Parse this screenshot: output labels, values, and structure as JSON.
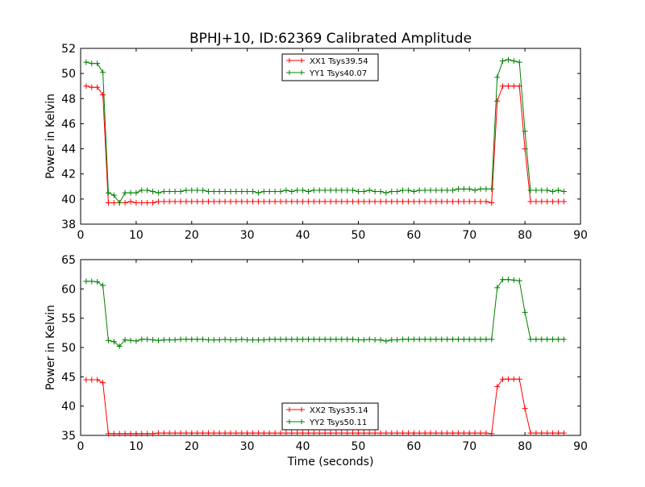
{
  "title": "BPHJ+10, ID:62369 Calibrated Amplitude",
  "colors": {
    "xx": "#ff0000",
    "yy": "#008000"
  },
  "chart_data": [
    {
      "type": "line",
      "title": "BPHJ+10, ID:62369 Calibrated Amplitude",
      "xlabel": "",
      "ylabel": "Power in Kelvin",
      "xlim": [
        0,
        90
      ],
      "ylim": [
        38,
        52
      ],
      "xticks": [
        0,
        10,
        20,
        30,
        40,
        50,
        60,
        70,
        80,
        90
      ],
      "yticks": [
        38,
        40,
        42,
        44,
        46,
        48,
        50,
        52
      ],
      "grid": false,
      "legend": "top-center",
      "x": [
        1,
        2,
        3,
        4,
        5,
        6,
        7,
        8,
        9,
        10,
        11,
        12,
        13,
        14,
        15,
        16,
        17,
        18,
        19,
        20,
        21,
        22,
        23,
        24,
        25,
        26,
        27,
        28,
        29,
        30,
        31,
        32,
        33,
        34,
        35,
        36,
        37,
        38,
        39,
        40,
        41,
        42,
        43,
        44,
        45,
        46,
        47,
        48,
        49,
        50,
        51,
        52,
        53,
        54,
        55,
        56,
        57,
        58,
        59,
        60,
        61,
        62,
        63,
        64,
        65,
        66,
        67,
        68,
        69,
        70,
        71,
        72,
        73,
        74,
        75,
        76,
        77,
        78,
        79,
        80,
        81,
        82,
        83,
        84,
        85,
        86,
        87
      ],
      "series": [
        {
          "name": "XX1 Tsys39.54",
          "color": "#ff0000",
          "values": [
            49.0,
            48.9,
            48.9,
            48.3,
            39.7,
            39.7,
            39.7,
            39.7,
            39.8,
            39.7,
            39.7,
            39.7,
            39.7,
            39.8,
            39.8,
            39.8,
            39.8,
            39.8,
            39.8,
            39.8,
            39.8,
            39.8,
            39.8,
            39.8,
            39.8,
            39.8,
            39.8,
            39.8,
            39.8,
            39.8,
            39.8,
            39.8,
            39.8,
            39.8,
            39.8,
            39.8,
            39.8,
            39.8,
            39.8,
            39.8,
            39.8,
            39.8,
            39.8,
            39.8,
            39.8,
            39.8,
            39.8,
            39.8,
            39.8,
            39.8,
            39.8,
            39.8,
            39.8,
            39.8,
            39.8,
            39.8,
            39.8,
            39.8,
            39.8,
            39.8,
            39.8,
            39.8,
            39.8,
            39.8,
            39.8,
            39.8,
            39.8,
            39.8,
            39.8,
            39.8,
            39.8,
            39.8,
            39.8,
            39.7,
            47.8,
            49.0,
            49.0,
            49.0,
            49.0,
            44.0,
            39.8,
            39.8,
            39.8,
            39.8,
            39.8,
            39.8,
            39.8
          ]
        },
        {
          "name": "YY1 Tsys40.07",
          "color": "#008000",
          "values": [
            50.9,
            50.8,
            50.8,
            50.1,
            40.5,
            40.3,
            39.7,
            40.5,
            40.5,
            40.5,
            40.7,
            40.7,
            40.6,
            40.5,
            40.6,
            40.6,
            40.6,
            40.6,
            40.7,
            40.7,
            40.7,
            40.7,
            40.6,
            40.6,
            40.6,
            40.6,
            40.6,
            40.6,
            40.6,
            40.6,
            40.6,
            40.5,
            40.6,
            40.6,
            40.6,
            40.6,
            40.7,
            40.6,
            40.7,
            40.7,
            40.6,
            40.7,
            40.7,
            40.7,
            40.7,
            40.7,
            40.7,
            40.7,
            40.7,
            40.6,
            40.6,
            40.7,
            40.6,
            40.6,
            40.5,
            40.6,
            40.6,
            40.7,
            40.7,
            40.6,
            40.7,
            40.7,
            40.7,
            40.7,
            40.7,
            40.7,
            40.7,
            40.8,
            40.8,
            40.8,
            40.7,
            40.8,
            40.8,
            40.8,
            49.7,
            51.0,
            51.1,
            51.0,
            50.9,
            45.4,
            40.7,
            40.7,
            40.7,
            40.7,
            40.6,
            40.7,
            40.6
          ]
        }
      ]
    },
    {
      "type": "line",
      "title": "",
      "xlabel": "Time (seconds)",
      "ylabel": "Power in Kelvin",
      "xlim": [
        0,
        90
      ],
      "ylim": [
        35,
        65
      ],
      "xticks": [
        0,
        10,
        20,
        30,
        40,
        50,
        60,
        70,
        80,
        90
      ],
      "yticks": [
        35,
        40,
        45,
        50,
        55,
        60,
        65
      ],
      "grid": false,
      "legend": "bottom-center",
      "x": [
        1,
        2,
        3,
        4,
        5,
        6,
        7,
        8,
        9,
        10,
        11,
        12,
        13,
        14,
        15,
        16,
        17,
        18,
        19,
        20,
        21,
        22,
        23,
        24,
        25,
        26,
        27,
        28,
        29,
        30,
        31,
        32,
        33,
        34,
        35,
        36,
        37,
        38,
        39,
        40,
        41,
        42,
        43,
        44,
        45,
        46,
        47,
        48,
        49,
        50,
        51,
        52,
        53,
        54,
        55,
        56,
        57,
        58,
        59,
        60,
        61,
        62,
        63,
        64,
        65,
        66,
        67,
        68,
        69,
        70,
        71,
        72,
        73,
        74,
        75,
        76,
        77,
        78,
        79,
        80,
        81,
        82,
        83,
        84,
        85,
        86,
        87
      ],
      "series": [
        {
          "name": "XX2 Tsys35.14",
          "color": "#ff0000",
          "values": [
            44.5,
            44.5,
            44.5,
            44.0,
            35.3,
            35.3,
            35.3,
            35.3,
            35.3,
            35.3,
            35.3,
            35.3,
            35.3,
            35.4,
            35.4,
            35.4,
            35.4,
            35.4,
            35.4,
            35.4,
            35.4,
            35.4,
            35.4,
            35.4,
            35.4,
            35.4,
            35.4,
            35.4,
            35.4,
            35.4,
            35.4,
            35.4,
            35.4,
            35.4,
            35.4,
            35.4,
            35.4,
            35.4,
            35.4,
            35.4,
            35.4,
            35.4,
            35.4,
            35.4,
            35.4,
            35.4,
            35.4,
            35.4,
            35.4,
            35.4,
            35.4,
            35.4,
            35.4,
            35.4,
            35.4,
            35.4,
            35.4,
            35.4,
            35.4,
            35.4,
            35.4,
            35.4,
            35.4,
            35.4,
            35.4,
            35.4,
            35.4,
            35.4,
            35.4,
            35.4,
            35.4,
            35.4,
            35.4,
            35.3,
            43.3,
            44.6,
            44.6,
            44.6,
            44.6,
            39.6,
            35.4,
            35.4,
            35.4,
            35.4,
            35.4,
            35.4,
            35.4
          ]
        },
        {
          "name": "YY2 Tsys50.11",
          "color": "#008000",
          "values": [
            61.3,
            61.3,
            61.2,
            60.6,
            51.2,
            51.0,
            50.2,
            51.3,
            51.2,
            51.1,
            51.4,
            51.4,
            51.3,
            51.2,
            51.3,
            51.3,
            51.3,
            51.4,
            51.4,
            51.4,
            51.4,
            51.4,
            51.3,
            51.3,
            51.3,
            51.4,
            51.3,
            51.3,
            51.4,
            51.3,
            51.3,
            51.3,
            51.3,
            51.4,
            51.4,
            51.4,
            51.4,
            51.4,
            51.4,
            51.4,
            51.4,
            51.4,
            51.4,
            51.4,
            51.4,
            51.4,
            51.4,
            51.4,
            51.4,
            51.3,
            51.3,
            51.4,
            51.3,
            51.3,
            51.1,
            51.3,
            51.3,
            51.4,
            51.4,
            51.4,
            51.4,
            51.4,
            51.4,
            51.4,
            51.4,
            51.4,
            51.4,
            51.4,
            51.4,
            51.4,
            51.4,
            51.4,
            51.4,
            51.4,
            60.2,
            61.6,
            61.6,
            61.5,
            61.4,
            56.0,
            51.4,
            51.4,
            51.4,
            51.4,
            51.4,
            51.4,
            51.4
          ]
        }
      ]
    }
  ]
}
